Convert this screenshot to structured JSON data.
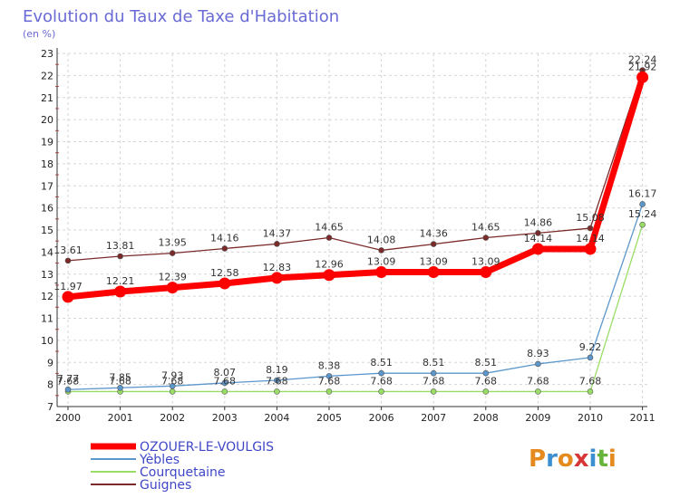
{
  "chart_data": {
    "type": "line",
    "title": "Evolution du Taux de Taxe d'Habitation",
    "subtitle": "(en %)",
    "xlabel": "",
    "ylabel": "",
    "ylim": [
      7,
      23
    ],
    "grid": true,
    "legend_position": "bottom-left",
    "x": [
      "2000",
      "2001",
      "2002",
      "2003",
      "2004",
      "2005",
      "2006",
      "2007",
      "2008",
      "2009",
      "2010",
      "2011"
    ],
    "series": [
      {
        "name": "OZOUER-LE-VOULGIS",
        "color": "#ff0000",
        "values": [
          11.97,
          12.21,
          12.39,
          12.58,
          12.83,
          12.96,
          13.09,
          13.09,
          13.09,
          14.14,
          14.14,
          21.92
        ],
        "labels": [
          "11.97",
          "12.21",
          "12.39",
          "12.58",
          "12.83",
          "12.96",
          "13.09",
          "13.09",
          "13.09",
          "14.14",
          "14.14",
          "21.92"
        ]
      },
      {
        "name": "Yèbles",
        "color": "#5c97cc",
        "values": [
          7.77,
          7.85,
          7.93,
          8.07,
          8.19,
          8.38,
          8.51,
          8.51,
          8.51,
          8.93,
          9.22,
          16.17
        ],
        "labels": [
          "7.77",
          "7.85",
          "7.93",
          "8.07",
          "8.19",
          "8.38",
          "8.51",
          "8.51",
          "8.51",
          "8.93",
          "9.22",
          "16.17"
        ]
      },
      {
        "name": "Courquetaine",
        "color": "#99dd66",
        "values": [
          7.68,
          7.68,
          7.68,
          7.68,
          7.68,
          7.68,
          7.68,
          7.68,
          7.68,
          7.68,
          7.68,
          15.24
        ],
        "labels": [
          "7.68",
          "7.68",
          "7.68",
          "7.68",
          "7.68",
          "7.68",
          "7.68",
          "7.68",
          "7.68",
          "7.68",
          "7.68",
          "15.24"
        ]
      },
      {
        "name": "Guignes",
        "color": "#7b2a2a",
        "values": [
          13.61,
          13.81,
          13.95,
          14.16,
          14.37,
          14.65,
          14.08,
          14.36,
          14.65,
          14.86,
          15.08,
          22.24
        ],
        "labels": [
          "13.61",
          "13.81",
          "13.95",
          "14.16",
          "14.37",
          "14.65",
          "14.08",
          "14.36",
          "14.65",
          "14.86",
          "15.08",
          "22.24"
        ]
      }
    ]
  },
  "branding": {
    "logo_text": "Proxiti"
  }
}
